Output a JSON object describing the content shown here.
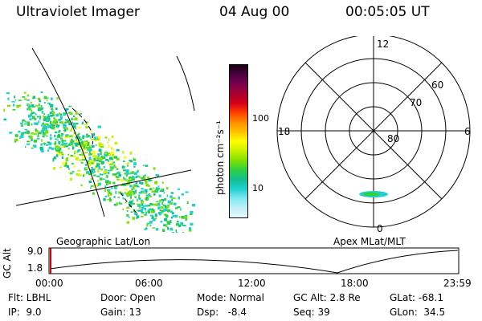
{
  "header": {
    "title": "Ultraviolet Imager",
    "date": "04 Aug 00",
    "time": "00:05:05 UT"
  },
  "colorbar": {
    "unit_text": "photon cm⁻²s⁻¹",
    "tick_labels": [
      "100",
      "10"
    ],
    "colors": [
      "#1a0014",
      "#4a0040",
      "#7a0050",
      "#a80030",
      "#d40018",
      "#ff4000",
      "#ff8c00",
      "#ffc000",
      "#ffff00",
      "#c8f000",
      "#80e000",
      "#30d040",
      "#10c090",
      "#20d0d0",
      "#80e8f0",
      "#c0f0f8",
      "#e8f8ff"
    ]
  },
  "polar_plot": {
    "latitude_labels": [
      "80",
      "70",
      "60"
    ],
    "mlt_labels": {
      "top": "12",
      "left": "18",
      "right": "6",
      "bottom": "0"
    }
  },
  "timeline": {
    "ylabel": "GC Alt",
    "y_ticks": [
      "9.0",
      "1.8"
    ],
    "left_caption": "Geographic Lat/Lon",
    "right_caption": "Apex MLat/MLT",
    "x_ticks": [
      "00:00",
      "06:00",
      "12:00",
      "18:00",
      "23:59"
    ]
  },
  "info": {
    "flt": "Flt: LBHL",
    "ip": "IP:  9.0",
    "door": "Door: Open",
    "gain": "Gain: 13",
    "mode": "Mode: Normal",
    "dsp": "Dsp:   -8.4",
    "gcalt": "GC Alt: 2.8 Re",
    "seq": "Seq: 39",
    "glat": "GLat: -68.1",
    "glon": "GLon:  34.5"
  }
}
